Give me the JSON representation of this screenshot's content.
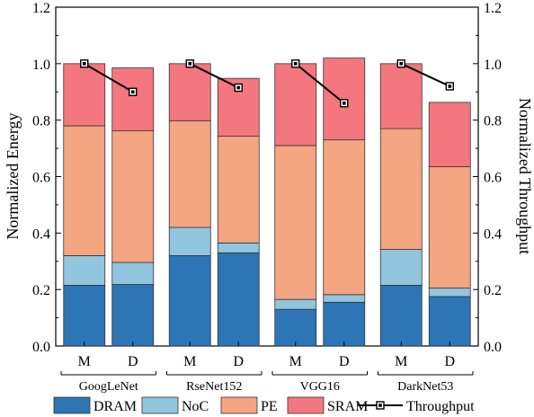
{
  "chart_data": {
    "type": "bar",
    "stacked": true,
    "groups": [
      "GoogLeNet",
      "RseNet152",
      "VGG16",
      "DarkNet53"
    ],
    "categories": [
      "M",
      "D",
      "M",
      "D",
      "M",
      "D",
      "M",
      "D"
    ],
    "series": [
      {
        "name": "DRAM",
        "color": "#2e75b6",
        "values": [
          0.215,
          0.218,
          0.32,
          0.33,
          0.13,
          0.155,
          0.215,
          0.175
        ]
      },
      {
        "name": "NoC",
        "color": "#92c5de",
        "values": [
          0.105,
          0.078,
          0.1,
          0.035,
          0.035,
          0.027,
          0.127,
          0.03
        ]
      },
      {
        "name": "PE",
        "color": "#f4a582",
        "values": [
          0.46,
          0.466,
          0.378,
          0.378,
          0.545,
          0.548,
          0.428,
          0.43
        ]
      },
      {
        "name": "SRAM",
        "color": "#f4777f",
        "values": [
          0.22,
          0.223,
          0.202,
          0.205,
          0.29,
          0.29,
          0.23,
          0.228
        ]
      }
    ],
    "throughput": {
      "name": "Throughput",
      "color": "#000000",
      "values": [
        1.0,
        0.9,
        1.0,
        0.915,
        1.0,
        0.86,
        1.0,
        0.92
      ]
    },
    "ylabel": "Normalized Energy",
    "y2label": "Normalized Throughput",
    "ylim": [
      0,
      1.2
    ],
    "y2lim": [
      0,
      1.2
    ],
    "yticks": [
      "0.0",
      "0.2",
      "0.4",
      "0.6",
      "0.8",
      "1.0",
      "1.2"
    ],
    "grid": false,
    "legend": "bottom"
  }
}
